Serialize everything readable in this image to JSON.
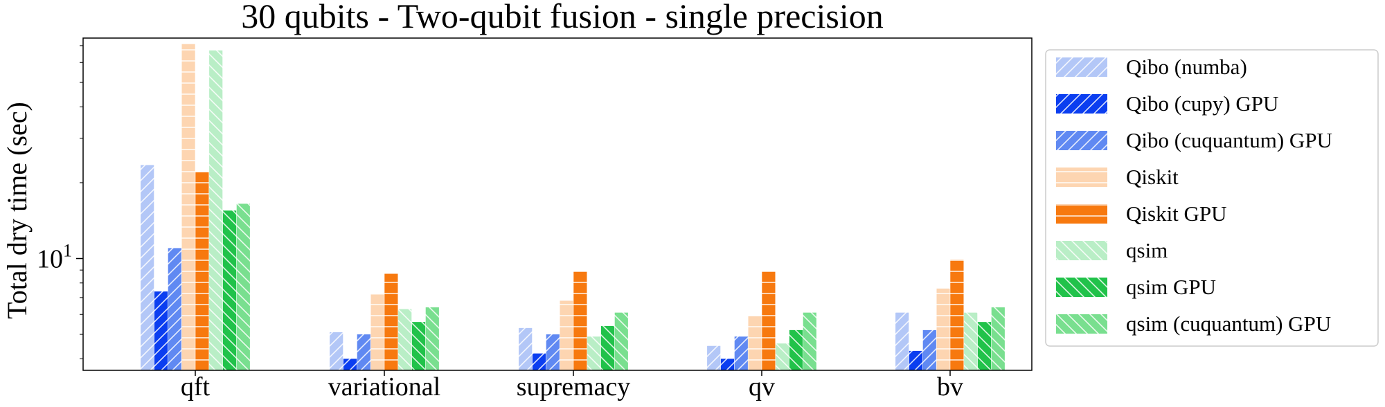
{
  "chart_data": {
    "type": "bar",
    "title": "30 qubits - Two-qubit fusion - single precision",
    "xlabel": "",
    "ylabel": "Total dry time (sec)",
    "yscale": "log",
    "ylim": [
      3.6,
      75
    ],
    "yticks": [
      {
        "value": 10,
        "base": "10",
        "exp": "1"
      }
    ],
    "grid": false,
    "legend_position": "outside-right",
    "categories": [
      "qft",
      "variational",
      "supremacy",
      "qv",
      "bv"
    ],
    "series": [
      {
        "name": "Qibo (numba)",
        "color": "#b3c7f7",
        "hatch": "diagonal-forward",
        "values": [
          23.5,
          5.1,
          5.3,
          4.5,
          6.1
        ]
      },
      {
        "name": "Qibo (cupy) GPU",
        "color": "#0b3ef0",
        "hatch": "diagonal-forward",
        "values": [
          7.4,
          4.0,
          4.2,
          4.0,
          4.3
        ]
      },
      {
        "name": "Qibo (cuquantum) GPU",
        "color": "#6089f2",
        "hatch": "diagonal-forward",
        "values": [
          11.0,
          5.0,
          5.0,
          4.9,
          5.2
        ]
      },
      {
        "name": "Qiskit",
        "color": "#fdd5b1",
        "hatch": "horizontal",
        "values": [
          71.0,
          7.2,
          6.8,
          5.9,
          7.6
        ]
      },
      {
        "name": "Qiskit GPU",
        "color": "#f7790f",
        "hatch": "horizontal",
        "values": [
          22.0,
          8.7,
          8.9,
          8.9,
          9.9
        ]
      },
      {
        "name": "qsim",
        "color": "#b9eec6",
        "hatch": "diagonal-back",
        "values": [
          67.0,
          6.3,
          4.9,
          4.6,
          6.1
        ]
      },
      {
        "name": "qsim GPU",
        "color": "#21c24a",
        "hatch": "diagonal-back",
        "values": [
          15.5,
          5.6,
          5.4,
          5.2,
          5.6
        ]
      },
      {
        "name": "qsim (cuquantum) GPU",
        "color": "#79df8f",
        "hatch": "diagonal-back",
        "values": [
          16.5,
          6.4,
          6.1,
          6.1,
          6.4
        ]
      }
    ]
  }
}
